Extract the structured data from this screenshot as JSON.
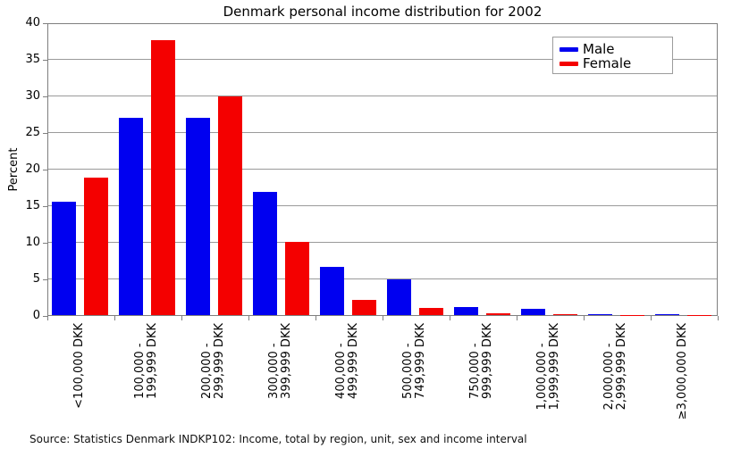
{
  "chart_data": {
    "type": "bar",
    "title": "Denmark personal income distribution for 2002",
    "ylabel": "Percent",
    "ylim": [
      0,
      40
    ],
    "ytick_step": 5,
    "yticks": [
      0,
      5,
      10,
      15,
      20,
      25,
      30,
      35,
      40
    ],
    "grid": "horizontal",
    "legend_position": "upper-right-inside",
    "categories": [
      "<100,000 DKK",
      "100,000 - 199,999 DKK",
      "200,000 - 299,999 DKK",
      "300,000 - 399,999 DKK",
      "400,000 - 499,999 DKK",
      "500,000 - 749,999 DKK",
      "750,000 - 999,999 DKK",
      "1,000,000 - 1,999,999 DKK",
      "2,000,000 - 2,999,999 DKK",
      "≥3,000,000 DKK"
    ],
    "categories_lines": [
      [
        "<100,000 DKK"
      ],
      [
        "100,000 -",
        "199,999 DKK"
      ],
      [
        "200,000 -",
        "299,999 DKK"
      ],
      [
        "300,000 -",
        "399,999 DKK"
      ],
      [
        "400,000 -",
        "499,999 DKK"
      ],
      [
        "500,000 -",
        "749,999 DKK"
      ],
      [
        "750,000 -",
        "999,999 DKK"
      ],
      [
        "1,000,000 -",
        "1,999,999 DKK"
      ],
      [
        "2,000,000 -",
        "2,999,999 DKK"
      ],
      [
        "≥3,000,000 DKK"
      ]
    ],
    "series": [
      {
        "name": "Male",
        "color": "#0000f0",
        "values": [
          15.5,
          26.9,
          26.9,
          16.8,
          6.6,
          4.9,
          1.1,
          0.8,
          0.15,
          0.1
        ]
      },
      {
        "name": "Female",
        "color": "#f40000",
        "values": [
          18.8,
          37.6,
          29.9,
          10.0,
          2.1,
          1.0,
          0.3,
          0.1,
          0.05,
          0.03
        ]
      }
    ],
    "source_note": "Source: Statistics Denmark INDKP102: Income, total by region, unit, sex and income interval"
  }
}
